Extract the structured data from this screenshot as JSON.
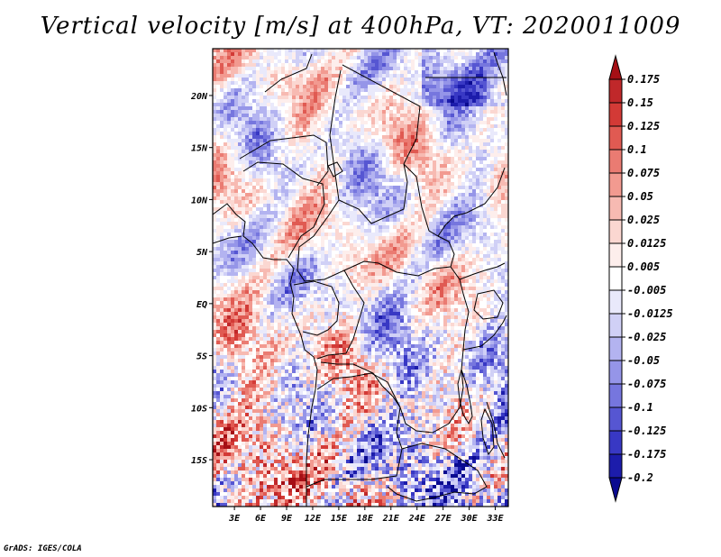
{
  "title": "Vertical velocity [m/s] at 400hPa, VT: 2020011009",
  "credit": "GrADS: IGES/COLA",
  "map": {
    "lat_range": [
      -19.5,
      24.5
    ],
    "lon_range": [
      0.5,
      34.5
    ],
    "lat_ticks": [
      {
        "value": 20,
        "label": "20N"
      },
      {
        "value": 15,
        "label": "15N"
      },
      {
        "value": 10,
        "label": "10N"
      },
      {
        "value": 5,
        "label": "5N"
      },
      {
        "value": 0,
        "label": "EQ"
      },
      {
        "value": -5,
        "label": "5S"
      },
      {
        "value": -10,
        "label": "10S"
      },
      {
        "value": -15,
        "label": "15S"
      }
    ],
    "lon_ticks": [
      {
        "value": 3,
        "label": "3E"
      },
      {
        "value": 6,
        "label": "6E"
      },
      {
        "value": 9,
        "label": "9E"
      },
      {
        "value": 12,
        "label": "12E"
      },
      {
        "value": 15,
        "label": "15E"
      },
      {
        "value": 18,
        "label": "18E"
      },
      {
        "value": 21,
        "label": "21E"
      },
      {
        "value": 24,
        "label": "24E"
      },
      {
        "value": 27,
        "label": "27E"
      },
      {
        "value": 30,
        "label": "30E"
      },
      {
        "value": 33,
        "label": "33E"
      }
    ]
  },
  "colorbar": {
    "labels": [
      "0.175",
      "0.15",
      "0.125",
      "0.1",
      "0.075",
      "0.05",
      "0.025",
      "0.0125",
      "0.005",
      "-0.005",
      "-0.0125",
      "-0.025",
      "-0.05",
      "-0.075",
      "-0.1",
      "-0.125",
      "-0.175",
      "-0.2"
    ],
    "colors": [
      "#a50f15",
      "#c0282a",
      "#d33a36",
      "#e05a52",
      "#ea7b72",
      "#f29a90",
      "#f7bab2",
      "#fbd7d1",
      "#fdeeec",
      "#ffffff",
      "#e9e9fb",
      "#d0d0f6",
      "#b3b3f0",
      "#9595e8",
      "#7676de",
      "#5656d2",
      "#3838c4",
      "#1c1cab",
      "#0a0a90"
    ]
  }
}
